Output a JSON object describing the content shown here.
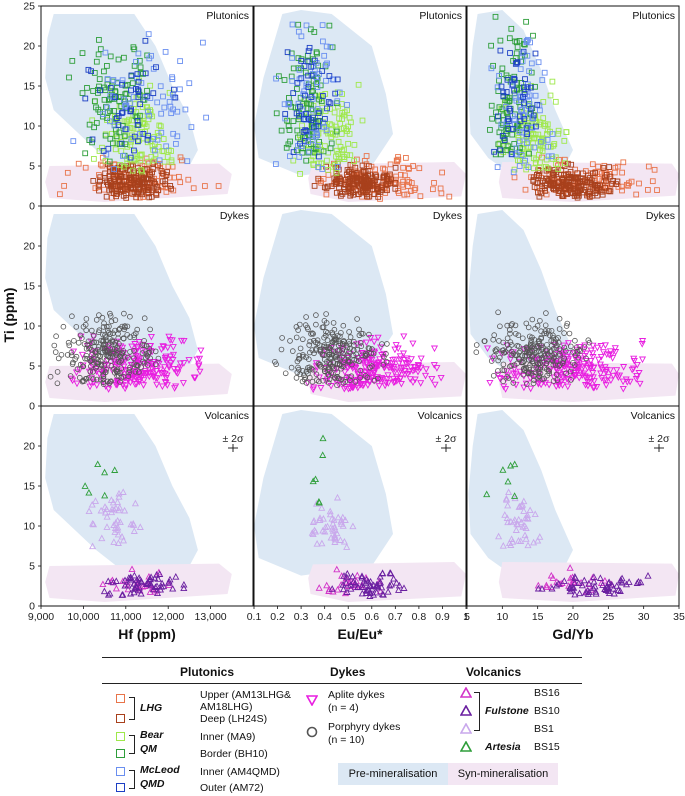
{
  "chart_data": {
    "type": "scatter",
    "ylabel": "Ti (ppm)",
    "ylim": [
      0,
      25
    ],
    "yticks": [
      0,
      5,
      10,
      15,
      20,
      25
    ],
    "row_labels": [
      "Plutonics",
      "Dykes",
      "Volcanics"
    ],
    "error_label": "± 2σ",
    "columns": [
      {
        "xlabel": "Hf (ppm)",
        "xlim": [
          9000,
          14000
        ],
        "xticks": [
          {
            "v": 9000,
            "t": "9,000"
          },
          {
            "v": 10000,
            "t": "10,000"
          },
          {
            "v": 11000,
            "t": "11,000"
          },
          {
            "v": 12000,
            "t": "12,000"
          },
          {
            "v": 13000,
            "t": "13,000"
          }
        ]
      },
      {
        "xlabel": "Eu/Eu*",
        "xlim": [
          0.1,
          1.0
        ],
        "xticks": [
          {
            "v": 0.1,
            "t": "0.1"
          },
          {
            "v": 0.2,
            "t": "0.2"
          },
          {
            "v": 0.3,
            "t": "0.3"
          },
          {
            "v": 0.4,
            "t": "0.4"
          },
          {
            "v": 0.5,
            "t": "0.5"
          },
          {
            "v": 0.6,
            "t": "0.6"
          },
          {
            "v": 0.7,
            "t": "0.7"
          },
          {
            "v": 0.8,
            "t": "0.8"
          },
          {
            "v": 0.9,
            "t": "0.9"
          },
          {
            "v": 1.0,
            "t": "1"
          }
        ]
      },
      {
        "xlabel": "Gd/Yb",
        "xlim": [
          5,
          35
        ],
        "xticks": [
          {
            "v": 5,
            "t": "5"
          },
          {
            "v": 10,
            "t": "10"
          },
          {
            "v": 15,
            "t": "15"
          },
          {
            "v": 20,
            "t": "20"
          },
          {
            "v": 25,
            "t": "25"
          },
          {
            "v": 30,
            "t": "30"
          },
          {
            "v": 35,
            "t": "35"
          }
        ]
      }
    ],
    "fields": [
      {
        "name": "Pre-mineralisation",
        "color": "#dce8f4",
        "shapes": [
          [
            [
              9300,
              24
            ],
            [
              11200,
              24
            ],
            [
              11700,
              20
            ],
            [
              12100,
              15
            ],
            [
              12500,
              11
            ],
            [
              12700,
              7
            ],
            [
              12300,
              3
            ],
            [
              10900,
              4.5
            ],
            [
              10300,
              7
            ],
            [
              9800,
              9.5
            ],
            [
              9300,
              12
            ],
            [
              9100,
              16
            ],
            [
              9150,
              21
            ]
          ],
          [
            [
              0.22,
              24
            ],
            [
              0.3,
              24.5
            ],
            [
              0.43,
              24
            ],
            [
              0.6,
              20
            ],
            [
              0.66,
              14
            ],
            [
              0.69,
              9
            ],
            [
              0.6,
              5
            ],
            [
              0.3,
              3.8
            ],
            [
              0.12,
              6
            ],
            [
              0.1,
              10
            ],
            [
              0.14,
              16
            ]
          ],
          [
            [
              6.5,
              24
            ],
            [
              10,
              24.5
            ],
            [
              13,
              22
            ],
            [
              15.5,
              17
            ],
            [
              17.5,
              12
            ],
            [
              20,
              7
            ],
            [
              18,
              3.5
            ],
            [
              12,
              3.5
            ],
            [
              8,
              6
            ],
            [
              5.5,
              9
            ],
            [
              5.2,
              14
            ],
            [
              5.8,
              20
            ]
          ]
        ]
      },
      {
        "name": "Syn-mineralisation",
        "color": "#f3e6f3",
        "shapes": [
          [
            [
              9200,
              5
            ],
            [
              13200,
              5.3
            ],
            [
              13500,
              4
            ],
            [
              13400,
              1.5
            ],
            [
              10500,
              0.5
            ],
            [
              9200,
              1
            ],
            [
              9100,
              3
            ]
          ],
          [
            [
              0.35,
              5.2
            ],
            [
              0.95,
              5.5
            ],
            [
              1.0,
              4
            ],
            [
              0.98,
              1.2
            ],
            [
              0.5,
              0.5
            ],
            [
              0.34,
              1.5
            ],
            [
              0.33,
              3.5
            ]
          ],
          [
            [
              10,
              5.5
            ],
            [
              34,
              5.3
            ],
            [
              35,
              4
            ],
            [
              34.5,
              1.3
            ],
            [
              20,
              0.5
            ],
            [
              10,
              1
            ],
            [
              9.5,
              3
            ]
          ]
        ]
      }
    ],
    "series": [
      {
        "name": "Upper (AM13LHG& AM18LHG)",
        "group": "LHG",
        "row": 0,
        "marker": "square",
        "color": "#e8744a",
        "count": 110,
        "xr": [
          [
            9100,
            13400
          ],
          [
            0.28,
            0.98
          ],
          [
            8,
            34
          ]
        ],
        "yr": [
          0.8,
          6.5
        ]
      },
      {
        "name": "Deep (LH24S)",
        "group": "LHG",
        "row": 0,
        "marker": "square",
        "color": "#a8401c",
        "count": 170,
        "xr": [
          [
            9900,
            12300
          ],
          [
            0.3,
            0.8
          ],
          [
            11,
            28
          ]
        ],
        "yr": [
          1,
          5.5
        ]
      },
      {
        "name": "Inner (MA9)",
        "group": "Bear QM",
        "row": 0,
        "marker": "square",
        "color": "#9ee84a",
        "count": 110,
        "xr": [
          [
            9800,
            12600
          ],
          [
            0.2,
            0.62
          ],
          [
            8,
            21
          ]
        ],
        "yr": [
          4,
          16
        ]
      },
      {
        "name": "Border (BH10)",
        "group": "Bear QM",
        "row": 0,
        "marker": "square",
        "color": "#2e9e3a",
        "count": 95,
        "xr": [
          [
            9400,
            12000
          ],
          [
            0.15,
            0.5
          ],
          [
            7,
            16
          ]
        ],
        "yr": [
          5,
          24
        ]
      },
      {
        "name": "Inner (AM4QMD)",
        "group": "McLeod QMD",
        "row": 0,
        "marker": "square",
        "color": "#6a8ff0",
        "count": 70,
        "xr": [
          [
            9600,
            13600
          ],
          [
            0.15,
            0.55
          ],
          [
            7,
            20
          ]
        ],
        "yr": [
          4,
          24
        ]
      },
      {
        "name": "Outer (AM72)",
        "group": "McLeod QMD",
        "row": 0,
        "marker": "square",
        "color": "#1c3fc4",
        "count": 45,
        "xr": [
          [
            9700,
            12500
          ],
          [
            0.18,
            0.5
          ],
          [
            7,
            17
          ]
        ],
        "yr": [
          6,
          22
        ]
      },
      {
        "name": "Aplite dykes",
        "note": "(n = 4)",
        "row": 1,
        "marker": "triangle-down",
        "color": "#e81ee0",
        "count": 220,
        "xr": [
          [
            9200,
            13400
          ],
          [
            0.25,
            0.98
          ],
          [
            6,
            34
          ]
        ],
        "yr": [
          2,
          9
        ]
      },
      {
        "name": "Porphyry dykes",
        "note": "(n = 10)",
        "row": 1,
        "marker": "circle",
        "color": "#555555",
        "count": 240,
        "xr": [
          [
            9000,
            12200
          ],
          [
            0.15,
            0.7
          ],
          [
            5,
            24
          ]
        ],
        "yr": [
          2.5,
          12
        ]
      },
      {
        "name": "BS16",
        "group": "Fulstone",
        "row": 2,
        "marker": "triangle",
        "color": "#d233c8",
        "count": 25,
        "xr": [
          [
            10200,
            12400
          ],
          [
            0.35,
            0.7
          ],
          [
            13,
            26
          ]
        ],
        "yr": [
          1.5,
          5
        ]
      },
      {
        "name": "BS10",
        "group": "Fulstone",
        "row": 2,
        "marker": "triangle",
        "color": "#6a1fa0",
        "count": 60,
        "xr": [
          [
            10300,
            12600
          ],
          [
            0.36,
            0.8
          ],
          [
            13,
            33
          ]
        ],
        "yr": [
          1.2,
          4.5
        ]
      },
      {
        "name": "BS1",
        "group": "Fulstone",
        "row": 2,
        "marker": "triangle",
        "color": "#c9a8ec",
        "count": 45,
        "xr": [
          [
            9900,
            11600
          ],
          [
            0.3,
            0.55
          ],
          [
            8,
            16
          ]
        ],
        "yr": [
          7,
          15
        ]
      },
      {
        "name": "BS15",
        "group": "Artesia",
        "row": 2,
        "marker": "triangle",
        "color": "#2e9e3a",
        "count": 6,
        "xr": [
          [
            9600,
            11300
          ],
          [
            0.32,
            0.48
          ],
          [
            7,
            15
          ]
        ],
        "yr": [
          10,
          24
        ]
      }
    ]
  },
  "legend": {
    "plutonics_header": "Plutonics",
    "dykes_header": "Dykes",
    "volcanics_header": "Volcanics",
    "lhg_label": "LHG",
    "bear_label_1": "Bear",
    "bear_label_2": "QM",
    "mcleod_label_1": "McLeod",
    "mcleod_label_2": "QMD",
    "upper_line_1": "Upper (AM13LHG&",
    "upper_line_2": "AM18LHG)",
    "deep": "Deep (LH24S)",
    "inner_ma9": "Inner (MA9)",
    "border_bh10": "Border (BH10)",
    "inner_am4qmd": "Inner (AM4QMD)",
    "outer_am72": "Outer (AM72)",
    "aplite": "Aplite dykes",
    "aplite_n": "(n = 4)",
    "porphyry": "Porphyry dykes",
    "porphyry_n": "(n = 10)",
    "fulstone": "Fulstone",
    "artesia": "Artesia",
    "bs16": "BS16",
    "bs10": "BS10",
    "bs1": "BS1",
    "bs15": "BS15",
    "pre_min": "Pre-mineralisation",
    "syn_min": "Syn-mineralisation"
  },
  "colors": {
    "pre": "#dce8f4",
    "syn": "#f3e6f3",
    "lhg_upper": "#e8744a",
    "lhg_deep": "#a8401c",
    "bear_inner": "#9ee84a",
    "bear_border": "#2e9e3a",
    "mcleod_inner": "#6a8ff0",
    "mcleod_outer": "#1c3fc4",
    "aplite": "#e81ee0",
    "porphyry": "#555555",
    "bs16": "#d233c8",
    "bs10": "#6a1fa0",
    "bs1": "#c9a8ec",
    "bs15": "#2e9e3a"
  }
}
